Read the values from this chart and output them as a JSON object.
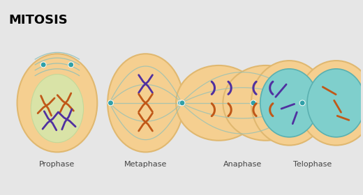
{
  "title": "MITOSIS",
  "bg_color": "#e6e6e6",
  "cell_bg": "#f5cf90",
  "cell_border": "#e0b870",
  "nucleus_glow": "#d0ebb0",
  "telo_nuc_bg": "#7fcfcc",
  "telo_nuc_border": "#5ab0b0",
  "spindle_color": "#90c0b8",
  "chr_purple": "#5030a0",
  "chr_orange": "#c05818",
  "cent_color": "#30a0a8",
  "stages": [
    "Prophase",
    "Metaphase",
    "Anaphase",
    "Telophase"
  ],
  "label_fontsize": 8,
  "title_fontsize": 13
}
